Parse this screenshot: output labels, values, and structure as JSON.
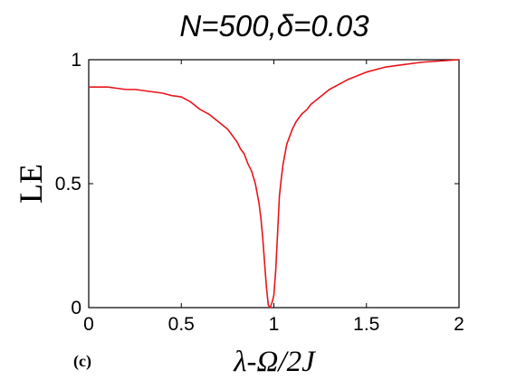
{
  "chart_data": {
    "type": "line",
    "title": "N=500,δ=0.03",
    "xlabel": "λ-Ω/2J",
    "ylabel": "LE",
    "panel_label": "(c)",
    "xlim": [
      0,
      2
    ],
    "ylim": [
      0,
      1
    ],
    "xticks": [
      0,
      0.5,
      1,
      1.5,
      2
    ],
    "xtick_labels": [
      "0",
      "0.5",
      "1",
      "1.5",
      "2"
    ],
    "yticks": [
      0,
      0.5,
      1
    ],
    "ytick_labels": [
      "0",
      "0.5",
      "1"
    ],
    "grid": false,
    "series": [
      {
        "color": "#e8141c",
        "x": [
          0,
          0.05,
          0.1,
          0.15,
          0.2,
          0.25,
          0.3,
          0.35,
          0.4,
          0.45,
          0.5,
          0.55,
          0.6,
          0.65,
          0.7,
          0.75,
          0.8,
          0.82,
          0.84,
          0.86,
          0.88,
          0.9,
          0.91,
          0.92,
          0.93,
          0.94,
          0.95,
          0.96,
          0.97,
          0.98,
          0.99,
          1.0,
          1.01,
          1.02,
          1.03,
          1.04,
          1.05,
          1.06,
          1.07,
          1.08,
          1.1,
          1.12,
          1.15,
          1.18,
          1.2,
          1.25,
          1.3,
          1.35,
          1.4,
          1.5,
          1.6,
          1.7,
          1.8,
          1.9,
          2.0
        ],
        "y": [
          0.89,
          0.89,
          0.89,
          0.885,
          0.88,
          0.88,
          0.875,
          0.87,
          0.865,
          0.855,
          0.85,
          0.83,
          0.8,
          0.78,
          0.75,
          0.72,
          0.67,
          0.64,
          0.62,
          0.58,
          0.55,
          0.5,
          0.46,
          0.42,
          0.36,
          0.28,
          0.18,
          0.08,
          0.01,
          0.0,
          0.02,
          0.05,
          0.15,
          0.3,
          0.45,
          0.52,
          0.58,
          0.62,
          0.66,
          0.68,
          0.72,
          0.75,
          0.78,
          0.8,
          0.82,
          0.85,
          0.88,
          0.9,
          0.92,
          0.95,
          0.97,
          0.98,
          0.99,
          0.995,
          1.0
        ]
      }
    ]
  }
}
